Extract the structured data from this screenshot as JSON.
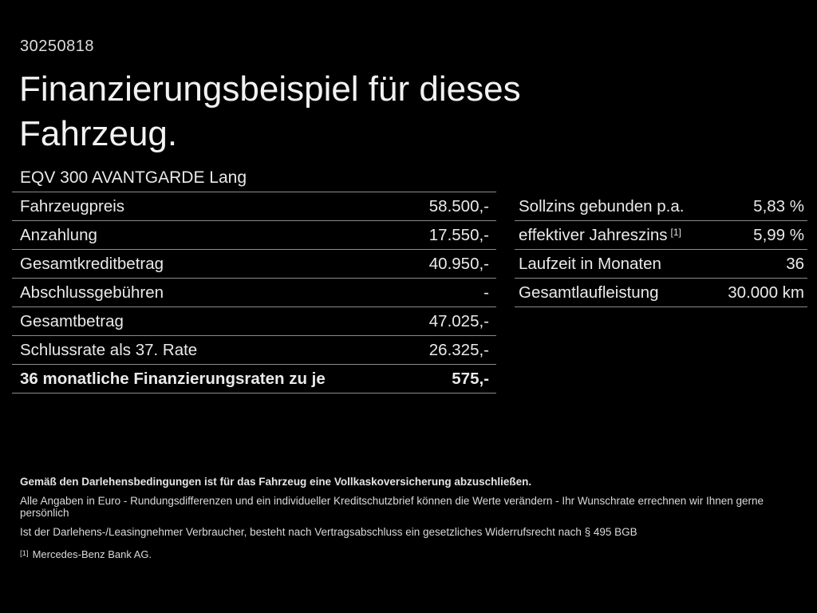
{
  "header": {
    "document_number": "30250818",
    "title_line1": "Finanzierungsbeispiel für dieses",
    "title_line2": "Fahrzeug.",
    "vehicle_model": "EQV 300 AVANTGARDE Lang"
  },
  "finance_table": {
    "rows": [
      {
        "label": "Fahrzeugpreis",
        "value": "58.500,-"
      },
      {
        "label": "Anzahlung",
        "value": "17.550,-"
      },
      {
        "label": "Gesamtkreditbetrag",
        "value": "40.950,-"
      },
      {
        "label": "Abschlussgebühren",
        "value": "-"
      },
      {
        "label": "Gesamtbetrag",
        "value": "47.025,-"
      },
      {
        "label": "Schlussrate als 37. Rate",
        "value": "26.325,-"
      },
      {
        "label": "36 monatliche Finanzierungsraten zu je",
        "value": "575,-"
      }
    ]
  },
  "conditions_table": {
    "rows": [
      {
        "label": "Sollzins gebunden p.a.",
        "sup": "",
        "value": "5,83 %"
      },
      {
        "label": "effektiver Jahreszins",
        "sup": "[1]",
        "value": "5,99 %"
      },
      {
        "label": "Laufzeit in Monaten",
        "sup": "",
        "value": "36"
      },
      {
        "label": "Gesamtlaufleistung",
        "sup": "",
        "value": "30.000 km"
      }
    ]
  },
  "disclaimer": {
    "insurance_note": "Gemäß den Darlehensbedingungen ist für das Fahrzeug eine Vollkaskoversicherung abzuschließen.",
    "info_line1": "Alle Angaben in Euro - Rundungsdifferenzen und ein individueller Kreditschutzbrief können die Werte verändern - Ihr Wunschrate errechnen wir Ihnen gerne persönlich",
    "info_line2": "Ist der Darlehens-/Leasingnehmer Verbraucher, besteht nach Vertragsabschluss ein gesetzliches Widerrufsrecht nach § 495 BGB",
    "footnote_marker": "[1]",
    "footnote_text": "Mercedes-Benz Bank AG."
  },
  "colors": {
    "background": "#000000",
    "text": "#eaeaea",
    "divider": "#8b8b8b"
  }
}
